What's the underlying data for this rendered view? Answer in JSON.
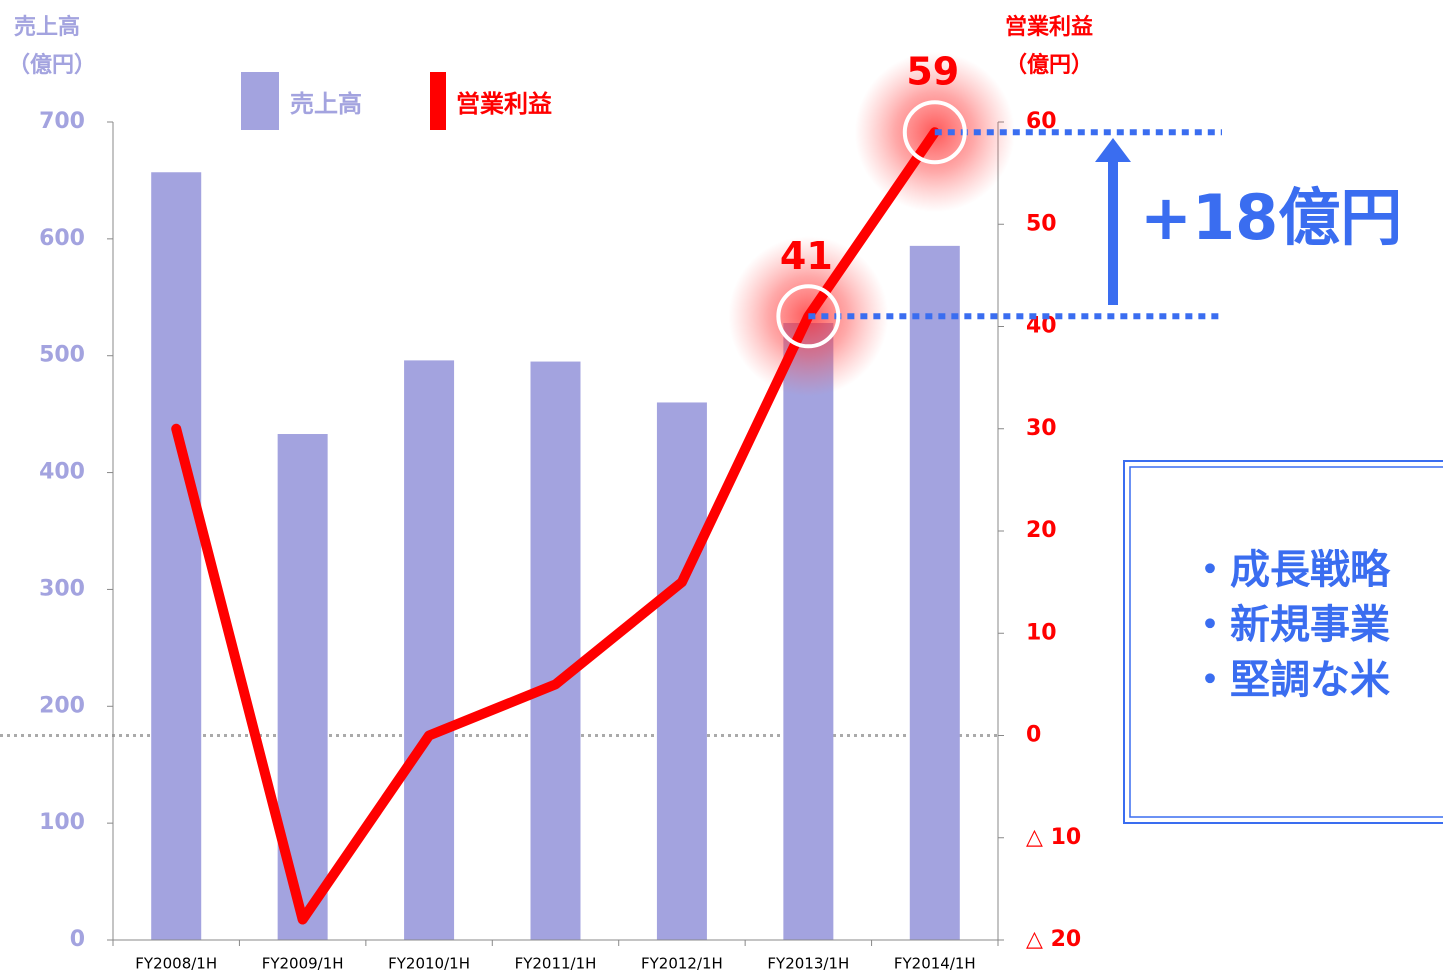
{
  "chart_data": {
    "type": "bar",
    "y_axis_title": [
      "売上高",
      "（億円）"
    ],
    "y2_axis_title": [
      "営業利益",
      "（億円）"
    ],
    "categories": [
      "FY2008/1H",
      "FY2009/1H",
      "FY2010/1H",
      "FY2011/1H",
      "FY2012/1H",
      "FY2013/1H",
      "FY2014/1H"
    ],
    "series": [
      {
        "name": "売上高",
        "type": "bar",
        "color": "#a3a3df",
        "values": [
          657,
          433,
          496,
          495,
          460,
          528,
          594
        ]
      },
      {
        "name": "営業利益",
        "type": "line",
        "axis": "y2",
        "color": "#ff0000",
        "values": [
          30,
          -18,
          0,
          5,
          15,
          41,
          59
        ]
      }
    ],
    "ylim": [
      0,
      700
    ],
    "yticks": [
      0,
      100,
      200,
      300,
      400,
      500,
      600,
      700
    ],
    "y2lim": [
      -20,
      60
    ],
    "y2ticks": [
      {
        "value": -20,
        "label": "△ 20"
      },
      {
        "value": -10,
        "label": "△ 10"
      },
      0,
      10,
      20,
      30,
      40,
      50,
      60
    ],
    "labeled_points": [
      5,
      6
    ],
    "annotations": {
      "change": "+18億円",
      "bullets": [
        "・成長戦略",
        "・新規事業",
        "・堅調な米"
      ]
    }
  }
}
